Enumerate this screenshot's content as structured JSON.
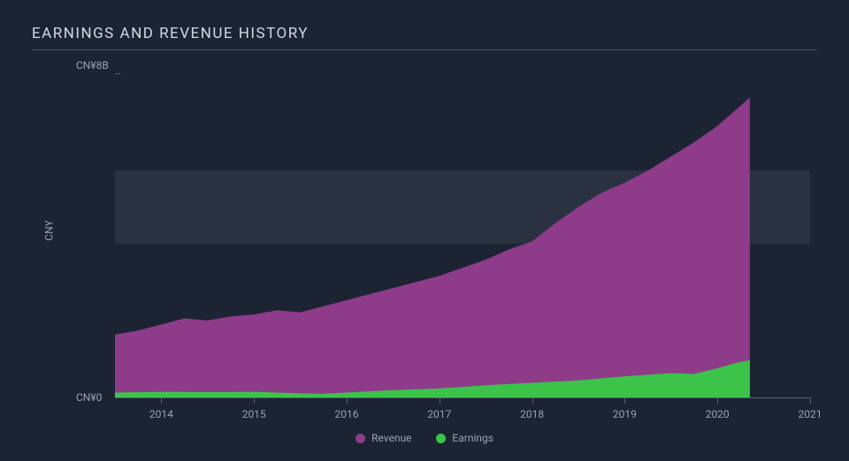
{
  "chart": {
    "type": "area",
    "title": "EARNINGS AND REVENUE HISTORY",
    "background_color": "#1c2434",
    "band_color": "#2a3242",
    "title_color": "#d4d8df",
    "label_color": "#9aa2b0",
    "title_fontsize": 17,
    "title_letterspacing": 1.5,
    "label_fontsize": 12,
    "axis_line_color": "#5a6170",
    "y_axis_label": "CNY",
    "y_top_label": "CN¥8B",
    "y_bottom_label": "CN¥0",
    "ylim": [
      0,
      8
    ],
    "band_range": [
      3.8,
      5.6
    ],
    "x_start_year": 2013.5,
    "x_end_year": 2021,
    "x_cutoff_year": 2020.35,
    "x_ticks": [
      2014,
      2015,
      2016,
      2017,
      2018,
      2019,
      2020,
      2021
    ],
    "series": [
      {
        "name": "Revenue",
        "color": "#8e3b8a",
        "fill_opacity": 1.0,
        "points": [
          [
            2013.5,
            1.55
          ],
          [
            2013.75,
            1.65
          ],
          [
            2014.0,
            1.8
          ],
          [
            2014.25,
            1.95
          ],
          [
            2014.5,
            1.9
          ],
          [
            2014.75,
            2.0
          ],
          [
            2015.0,
            2.05
          ],
          [
            2015.25,
            2.15
          ],
          [
            2015.5,
            2.1
          ],
          [
            2015.75,
            2.25
          ],
          [
            2016.0,
            2.4
          ],
          [
            2016.25,
            2.55
          ],
          [
            2016.5,
            2.7
          ],
          [
            2016.75,
            2.85
          ],
          [
            2017.0,
            3.0
          ],
          [
            2017.25,
            3.2
          ],
          [
            2017.5,
            3.4
          ],
          [
            2017.75,
            3.65
          ],
          [
            2018.0,
            3.85
          ],
          [
            2018.25,
            4.3
          ],
          [
            2018.5,
            4.7
          ],
          [
            2018.75,
            5.05
          ],
          [
            2019.0,
            5.3
          ],
          [
            2019.25,
            5.6
          ],
          [
            2019.5,
            5.95
          ],
          [
            2019.75,
            6.3
          ],
          [
            2020.0,
            6.7
          ],
          [
            2020.2,
            7.1
          ],
          [
            2020.35,
            7.4
          ]
        ]
      },
      {
        "name": "Earnings",
        "color": "#3cc44a",
        "fill_opacity": 1.0,
        "points": [
          [
            2013.5,
            0.12
          ],
          [
            2014.0,
            0.14
          ],
          [
            2014.5,
            0.13
          ],
          [
            2015.0,
            0.14
          ],
          [
            2015.5,
            0.1
          ],
          [
            2015.75,
            0.09
          ],
          [
            2016.0,
            0.12
          ],
          [
            2016.5,
            0.18
          ],
          [
            2017.0,
            0.22
          ],
          [
            2017.5,
            0.3
          ],
          [
            2018.0,
            0.36
          ],
          [
            2018.5,
            0.42
          ],
          [
            2019.0,
            0.52
          ],
          [
            2019.5,
            0.6
          ],
          [
            2019.75,
            0.58
          ],
          [
            2020.0,
            0.72
          ],
          [
            2020.2,
            0.85
          ],
          [
            2020.35,
            0.92
          ]
        ]
      }
    ],
    "legend": {
      "items": [
        {
          "label": "Revenue",
          "color": "#8e3b8a"
        },
        {
          "label": "Earnings",
          "color": "#3cc44a"
        }
      ]
    }
  }
}
